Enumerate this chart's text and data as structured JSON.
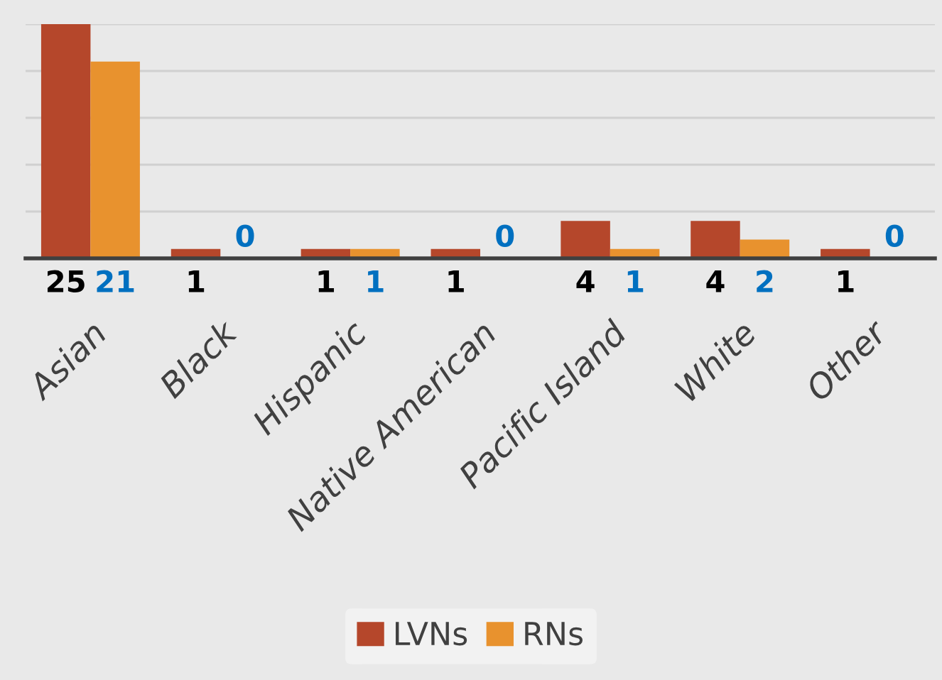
{
  "chart_data": {
    "type": "bar",
    "categories": [
      "Asian",
      "Black",
      "Hispanic",
      "Native American",
      "Pacific Island",
      "White",
      "Other"
    ],
    "series": [
      {
        "name": "LVNs",
        "color": "#b5472b",
        "values": [
          25,
          1,
          1,
          1,
          4,
          4,
          1
        ]
      },
      {
        "name": "RNs",
        "color": "#e8922e",
        "values": [
          21,
          0,
          1,
          0,
          1,
          2,
          0
        ]
      }
    ],
    "ylim": [
      0,
      25
    ],
    "yticks": [
      {
        "value": 0,
        "label": null
      },
      {
        "value": 5,
        "label": null
      },
      {
        "value": 10,
        "label": null
      },
      {
        "value": 15,
        "label": null
      },
      {
        "value": 20,
        "label": null
      },
      {
        "value": 25,
        "label": null
      }
    ],
    "grid": "y",
    "legend": "bottom",
    "data_labels": true
  }
}
